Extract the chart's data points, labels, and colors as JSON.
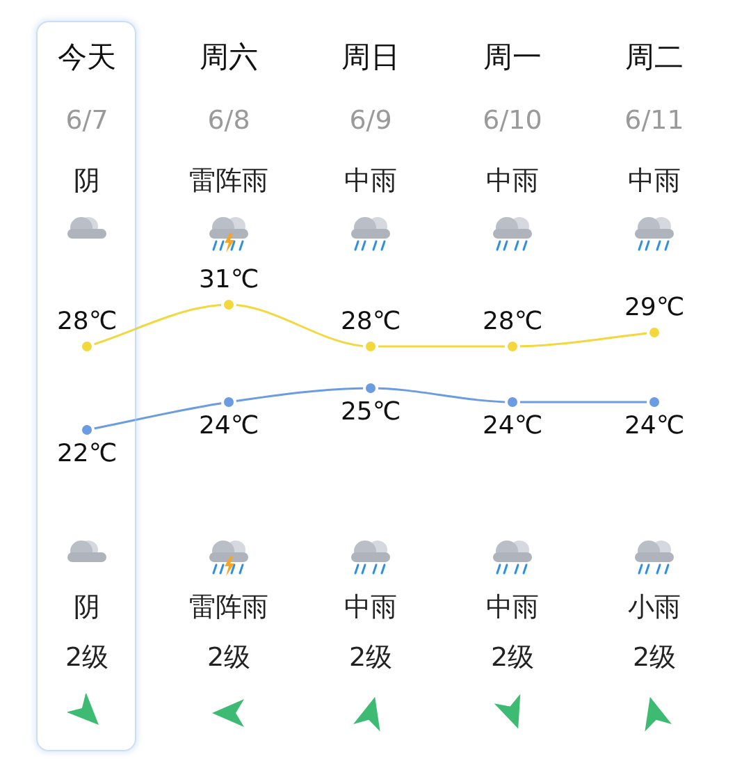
{
  "chart_data": {
    "type": "line",
    "categories": [
      "今天\n6/7\n阴",
      "周六\n6/8\n雷阵雨",
      "周日\n6/9\n中雨",
      "周一\n6/10\n中雨",
      "周二\n6/11\n中雨"
    ],
    "series": [
      {
        "color": "#f2d83c",
        "values": [
          28,
          31,
          28,
          28,
          29
        ],
        "value_labels": [
          "28℃",
          "31℃",
          "28℃",
          "28℃",
          "29℃"
        ]
      },
      {
        "color": "#6b9be0",
        "values": [
          22,
          24,
          25,
          24,
          24
        ],
        "value_labels": [
          "22℃",
          "24℃",
          "25℃",
          "24℃",
          "24℃"
        ]
      }
    ],
    "tick_labels": "x",
    "legend": false,
    "grid": false,
    "marker": "circle",
    "line_style": "solid",
    "annotations": [
      "阴\n2级",
      "雷阵雨\n2级",
      "中雨\n2级",
      "中雨\n2级",
      "小雨\n2级"
    ]
  }
}
